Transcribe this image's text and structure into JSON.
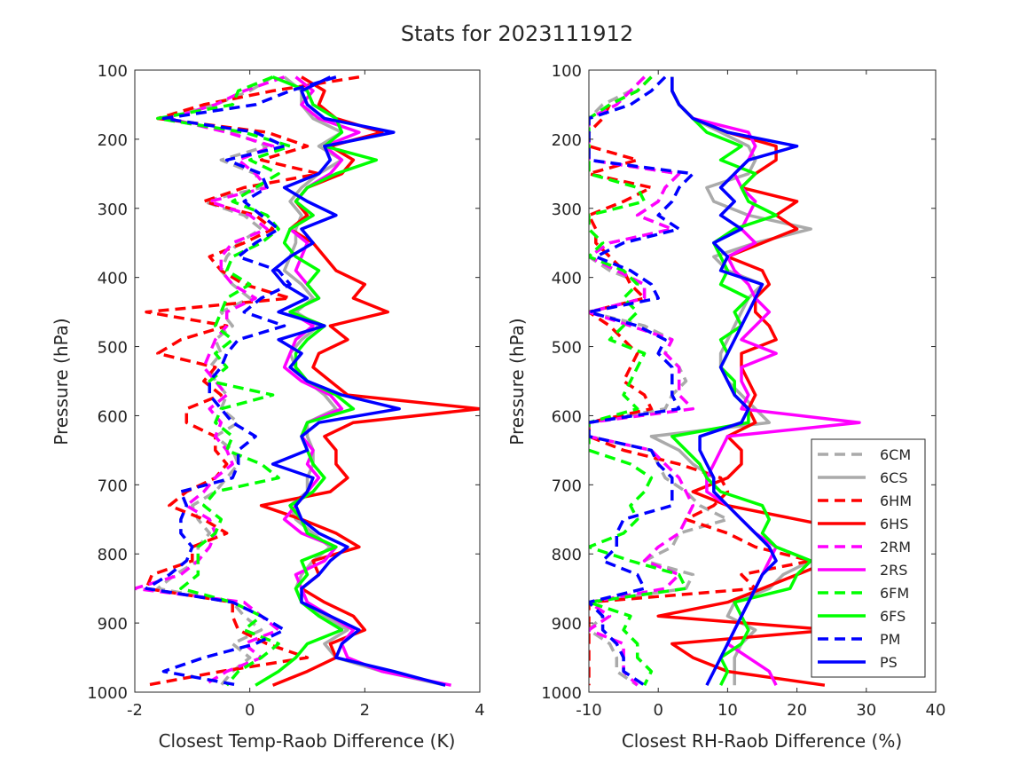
{
  "title": "Stats for 2023111912",
  "series_styles": [
    {
      "name": "6CM",
      "color": "#aaaaaa",
      "dash": true
    },
    {
      "name": "6CS",
      "color": "#aaaaaa",
      "dash": false
    },
    {
      "name": "6HM",
      "color": "#ff0000",
      "dash": true
    },
    {
      "name": "6HS",
      "color": "#ff0000",
      "dash": false
    },
    {
      "name": "2RM",
      "color": "#ff00ff",
      "dash": true
    },
    {
      "name": "2RS",
      "color": "#ff00ff",
      "dash": false
    },
    {
      "name": "6FM",
      "color": "#00ff00",
      "dash": true
    },
    {
      "name": "6FS",
      "color": "#00ff00",
      "dash": false
    },
    {
      "name": "PM",
      "color": "#0000ff",
      "dash": true
    },
    {
      "name": "PS",
      "color": "#0000ff",
      "dash": false
    }
  ],
  "chart_data": [
    {
      "type": "line",
      "xlabel": "Closest Temp-Raob Difference (K)",
      "ylabel": "Pressure (hPa)",
      "xlim": [
        -2,
        4
      ],
      "ylim": [
        100,
        1000
      ],
      "y_reversed": true,
      "xticks": [
        -2,
        0,
        2,
        4
      ],
      "yticks": [
        100,
        200,
        300,
        400,
        500,
        600,
        700,
        800,
        900,
        1000
      ],
      "grid": false,
      "legend": "none",
      "p": [
        110,
        130,
        150,
        170,
        190,
        210,
        230,
        250,
        270,
        290,
        310,
        330,
        350,
        370,
        390,
        410,
        430,
        450,
        470,
        490,
        510,
        530,
        550,
        570,
        590,
        610,
        630,
        650,
        670,
        690,
        710,
        730,
        750,
        770,
        790,
        810,
        830,
        850,
        870,
        890,
        910,
        930,
        950,
        970,
        990
      ],
      "series": [
        {
          "name": "6CM",
          "x": [
            0.4,
            0.0,
            -0.6,
            -1.5,
            -0.3,
            0.3,
            -0.5,
            0.1,
            0.2,
            -0.8,
            -0.1,
            0.2,
            -0.2,
            -0.4,
            -0.5,
            -0.3,
            0.0,
            -0.5,
            -0.3,
            -0.6,
            -0.5,
            -0.7,
            -0.6,
            -0.4,
            -0.5,
            -0.2,
            -0.6,
            -0.3,
            -0.2,
            -0.4,
            -0.6,
            -1.0,
            -0.9,
            -0.7,
            -0.9,
            -0.9,
            -1.3,
            -1.6,
            -0.3,
            -0.1,
            0.2,
            -0.3,
            0.0,
            -0.3,
            -0.5
          ]
        },
        {
          "name": "6CS",
          "x": [
            0.6,
            0.9,
            0.9,
            1.1,
            1.6,
            1.2,
            1.6,
            1.2,
            0.9,
            0.7,
            0.9,
            0.8,
            0.8,
            0.7,
            0.6,
            0.9,
            1.1,
            0.8,
            1.2,
            0.9,
            0.7,
            0.8,
            1.0,
            1.3,
            1.5,
            1.0,
            1.0,
            1.1,
            1.1,
            1.0,
            1.0,
            0.7,
            0.8,
            1.1,
            1.4,
            1.1,
            0.9,
            0.8,
            0.9,
            1.3,
            1.7,
            1.3,
            1.5,
            2.3,
            3.4
          ]
        },
        {
          "name": "6HM",
          "x": [
            1.9,
            0.4,
            -0.8,
            -1.6,
            0.3,
            1.0,
            0.2,
            1.2,
            -0.1,
            -0.8,
            0.1,
            0.4,
            -0.1,
            -0.7,
            -0.5,
            -0.1,
            0.7,
            -1.8,
            -0.4,
            -1.2,
            -1.6,
            -0.6,
            -0.8,
            -0.5,
            -1.1,
            -1.1,
            -0.6,
            -0.6,
            -0.4,
            -0.6,
            -1.1,
            -1.4,
            -0.8,
            -0.4,
            -1.0,
            -1.0,
            -1.7,
            -1.8,
            -0.3,
            -0.3,
            -0.2,
            0.3,
            1.0,
            -0.5,
            -1.8
          ]
        },
        {
          "name": "6HS",
          "x": [
            0.9,
            1.3,
            1.2,
            1.5,
            2.3,
            1.4,
            1.8,
            1.6,
            1.0,
            0.8,
            1.0,
            0.7,
            1.1,
            1.3,
            1.5,
            2.0,
            1.8,
            2.4,
            1.4,
            1.7,
            1.2,
            1.1,
            1.4,
            1.7,
            4.0,
            1.8,
            1.3,
            1.5,
            1.5,
            1.7,
            1.4,
            0.2,
            0.9,
            1.5,
            1.9,
            1.1,
            1.2,
            0.9,
            1.3,
            1.8,
            2.0,
            1.4,
            1.5,
            1.0,
            0.4
          ]
        },
        {
          "name": "2RM",
          "x": [
            0.6,
            -0.1,
            -0.6,
            -1.4,
            -0.4,
            0.4,
            -0.2,
            0.1,
            0.3,
            -0.7,
            0.0,
            0.3,
            -0.3,
            -0.5,
            -0.5,
            -0.3,
            0.1,
            -0.4,
            -0.4,
            -0.6,
            -0.7,
            -0.8,
            -0.6,
            -0.4,
            -0.7,
            -0.5,
            -0.6,
            -0.4,
            -0.3,
            -0.6,
            -0.8,
            -1.1,
            -0.7,
            -0.6,
            -0.7,
            -0.9,
            -1.2,
            -2.0,
            -0.1,
            0.2,
            0.5,
            -0.1,
            0.2,
            -0.4,
            -0.8
          ]
        },
        {
          "name": "2RS",
          "x": [
            0.8,
            1.1,
            0.9,
            1.2,
            1.9,
            1.3,
            1.6,
            1.4,
            1.0,
            0.8,
            1.1,
            0.7,
            1.0,
            0.9,
            0.8,
            1.0,
            1.2,
            0.7,
            1.1,
            0.8,
            0.7,
            0.6,
            0.9,
            1.4,
            1.6,
            1.0,
            0.9,
            1.1,
            1.0,
            1.2,
            1.0,
            0.8,
            0.6,
            0.9,
            1.5,
            1.3,
            0.8,
            0.9,
            1.0,
            1.4,
            1.8,
            1.6,
            1.7,
            2.3,
            3.5
          ]
        },
        {
          "name": "6FM",
          "x": [
            0.4,
            -0.2,
            -0.3,
            -1.6,
            -0.1,
            0.7,
            0.0,
            0.5,
            0.1,
            -0.3,
            0.3,
            0.5,
            0.2,
            -0.3,
            -0.4,
            0.0,
            -0.4,
            -0.5,
            -0.6,
            -0.3,
            -0.6,
            -0.4,
            -0.7,
            0.4,
            -0.5,
            -0.6,
            -0.3,
            -0.4,
            0.2,
            0.5,
            -0.6,
            -0.8,
            -0.5,
            -0.6,
            -0.9,
            -0.9,
            -0.9,
            -1.2,
            -0.3,
            0.2,
            -0.1,
            0.5,
            0.2,
            -0.2,
            -0.4
          ]
        },
        {
          "name": "6FS",
          "x": [
            0.4,
            1.0,
            1.1,
            1.5,
            1.6,
            1.3,
            2.2,
            1.5,
            1.0,
            0.8,
            1.1,
            0.7,
            0.6,
            0.8,
            1.2,
            1.0,
            1.2,
            0.7,
            1.3,
            1.0,
            0.8,
            0.8,
            1.0,
            1.5,
            1.8,
            1.0,
            0.9,
            1.0,
            1.1,
            1.3,
            1.1,
            0.7,
            0.9,
            1.0,
            1.5,
            0.9,
            1.0,
            0.8,
            0.9,
            1.2,
            1.6,
            1.0,
            0.8,
            0.5,
            0.1
          ]
        },
        {
          "name": "PM",
          "x": [
            1.5,
            0.7,
            0.1,
            -1.5,
            0.1,
            0.6,
            -0.4,
            0.2,
            0.3,
            -0.1,
            0.2,
            0.5,
            0.1,
            -0.2,
            0.5,
            0.7,
            0.2,
            -0.1,
            0.6,
            -0.2,
            -0.4,
            -0.5,
            -0.7,
            -0.7,
            -0.5,
            -0.3,
            0.1,
            -0.2,
            -0.2,
            -0.3,
            -1.2,
            -1.1,
            -1.2,
            -1.2,
            -1.0,
            -1.1,
            -1.4,
            -1.8,
            -0.3,
            0.2,
            0.6,
            0.1,
            -0.8,
            -1.5,
            -0.2
          ]
        },
        {
          "name": "PS",
          "x": [
            1.4,
            0.9,
            1.0,
            1.3,
            2.5,
            1.3,
            1.4,
            1.2,
            0.6,
            1.0,
            1.5,
            0.9,
            1.1,
            0.7,
            0.4,
            0.6,
            1.0,
            0.5,
            1.3,
            0.5,
            0.9,
            0.7,
            1.0,
            1.6,
            2.6,
            1.2,
            0.9,
            1.0,
            0.4,
            1.1,
            1.0,
            0.8,
            0.9,
            1.2,
            1.7,
            1.4,
            1.2,
            0.9,
            0.9,
            1.4,
            1.9,
            1.6,
            1.5,
            2.5,
            3.4
          ]
        }
      ]
    },
    {
      "type": "line",
      "xlabel": "Closest RH-Raob Difference (%)",
      "ylabel": "Pressure (hPa)",
      "xlim": [
        -10,
        40
      ],
      "ylim": [
        100,
        1000
      ],
      "y_reversed": true,
      "xticks": [
        -10,
        0,
        10,
        20,
        30,
        40
      ],
      "yticks": [
        100,
        200,
        300,
        400,
        500,
        600,
        700,
        800,
        900,
        1000
      ],
      "grid": false,
      "legend": "bottom-right",
      "p": [
        110,
        130,
        150,
        170,
        190,
        210,
        230,
        250,
        270,
        290,
        310,
        330,
        350,
        370,
        390,
        410,
        430,
        450,
        470,
        490,
        510,
        530,
        550,
        570,
        590,
        610,
        630,
        650,
        670,
        690,
        710,
        730,
        750,
        770,
        790,
        810,
        830,
        850,
        870,
        890,
        910,
        930,
        950,
        970,
        990
      ],
      "series": [
        {
          "name": "6CM",
          "x": [
            -2,
            -4,
            -8,
            -10,
            -10,
            -10,
            -10,
            3,
            1,
            0,
            -3,
            2,
            -7,
            -10,
            -7,
            -2,
            -2,
            -10,
            -2,
            2,
            1,
            3,
            4,
            2,
            1,
            -10,
            -10,
            -1,
            0,
            1,
            4,
            6,
            10,
            3,
            2,
            -2,
            5,
            4,
            -10,
            -8,
            -10,
            -7,
            -6,
            -6,
            -3
          ]
        },
        {
          "name": "6CS",
          "x": [
            2,
            2,
            3,
            5,
            9,
            13,
            14,
            13,
            7,
            8,
            13,
            22,
            14,
            8,
            10,
            15,
            13,
            12,
            11,
            10,
            9,
            9,
            10,
            12,
            14,
            16,
            -1,
            3,
            5,
            8,
            8,
            10,
            12,
            14,
            17,
            22,
            18,
            16,
            11,
            10,
            14,
            12,
            11,
            11,
            11
          ]
        },
        {
          "name": "6HM",
          "x": [
            -1,
            -3,
            -7,
            -8,
            -10,
            -10,
            -3,
            -10,
            -1,
            -5,
            -10,
            -9,
            -9,
            -7,
            -5,
            -4,
            -2,
            -10,
            -7,
            -5,
            -3,
            -4,
            -5,
            -2,
            -1,
            -10,
            -10,
            -5,
            3,
            9,
            10,
            8,
            4,
            10,
            14,
            22,
            12,
            14,
            -10,
            -10,
            -10,
            -10,
            -10,
            -10,
            -10
          ]
        },
        {
          "name": "6HS",
          "x": [
            2,
            2,
            3,
            5,
            10,
            17,
            17,
            14,
            12,
            20,
            17,
            20,
            15,
            10,
            15,
            16,
            14,
            14,
            16,
            17,
            12,
            12,
            13,
            14,
            13,
            14,
            10,
            12,
            12,
            10,
            5,
            10,
            20,
            30,
            30,
            25,
            20,
            15,
            10,
            0,
            25,
            2,
            5,
            10,
            24
          ]
        },
        {
          "name": "2RM",
          "x": [
            -2,
            -4,
            -6,
            -10,
            -10,
            -10,
            -10,
            3,
            1,
            0,
            -3,
            2,
            -7,
            -10,
            -6,
            -2,
            -2,
            -10,
            -4,
            2,
            1,
            3,
            3,
            3,
            5,
            -10,
            -10,
            -1,
            1,
            3,
            4,
            5,
            4,
            3,
            0,
            -2,
            3,
            1,
            -10,
            -7,
            -10,
            -5,
            -5,
            -5,
            -3
          ]
        },
        {
          "name": "2RS",
          "x": [
            2,
            2,
            3,
            5,
            13,
            14,
            13,
            11,
            12,
            14,
            13,
            12,
            14,
            10,
            11,
            13,
            14,
            16,
            14,
            12,
            17,
            12,
            12,
            13,
            12,
            29,
            10,
            9,
            8,
            7,
            7,
            10,
            12,
            14,
            17,
            16,
            15,
            14,
            13,
            12,
            11,
            10,
            13,
            16,
            17
          ]
        },
        {
          "name": "6FM",
          "x": [
            -1,
            -3,
            -7,
            -10,
            -10,
            -10,
            -10,
            -10,
            -3,
            -2,
            -10,
            -10,
            -8,
            -10,
            -5,
            -3,
            -5,
            -3,
            -5,
            -7,
            -2,
            -3,
            -4,
            -5,
            -3,
            -10,
            -10,
            -10,
            -4,
            -1,
            -2,
            -4,
            -3,
            -5,
            -10,
            -4,
            3,
            4,
            -10,
            -4,
            -5,
            -3,
            -3,
            -1,
            -2
          ]
        },
        {
          "name": "6FS",
          "x": [
            2,
            2,
            3,
            5,
            7,
            12,
            9,
            14,
            12,
            13,
            17,
            11,
            8,
            9,
            10,
            9,
            13,
            11,
            12,
            9,
            10,
            9,
            11,
            11,
            13,
            13,
            2,
            4,
            6,
            7,
            9,
            15,
            16,
            15,
            17,
            22,
            20,
            19,
            11,
            12,
            13,
            12,
            9,
            10,
            9
          ]
        },
        {
          "name": "PM",
          "x": [
            1,
            -1,
            -4,
            -10,
            -10,
            -10,
            -10,
            5,
            3,
            2,
            0,
            3,
            -5,
            -9,
            -4,
            -1,
            0,
            -10,
            -3,
            1,
            0,
            2,
            2,
            2,
            3,
            -10,
            -10,
            -1,
            0,
            2,
            2,
            2,
            -5,
            -6,
            -6,
            -8,
            -3,
            -2,
            -10,
            -8,
            -8,
            -6,
            -5,
            -5,
            -2
          ]
        },
        {
          "name": "PS",
          "x": [
            2,
            2,
            3,
            5,
            10,
            20,
            13,
            11,
            9,
            11,
            9,
            12,
            8,
            10,
            9,
            15,
            14,
            13,
            12,
            11,
            10,
            9,
            10,
            11,
            13,
            12,
            6,
            6,
            7,
            8,
            8,
            10,
            12,
            14,
            16,
            17,
            15,
            14,
            13,
            12,
            11,
            10,
            9,
            8,
            7
          ]
        }
      ]
    }
  ]
}
